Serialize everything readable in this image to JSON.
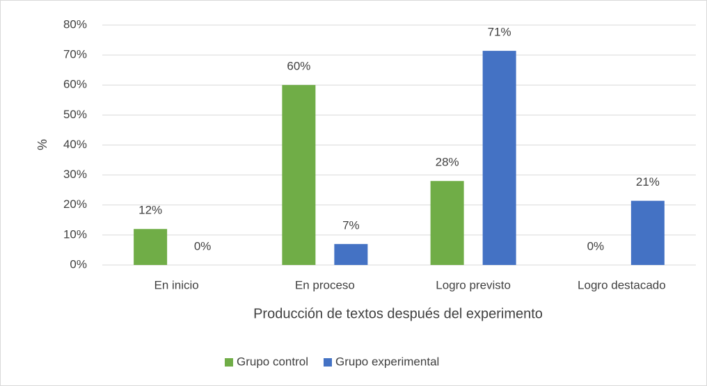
{
  "chart_data": {
    "type": "bar",
    "x_label": "Producción de textos después del experimento",
    "y_label": "%",
    "categories": [
      "En inicio",
      "En proceso",
      "Logro previsto",
      "Logro destacado"
    ],
    "series": [
      {
        "name": "Grupo control",
        "color": "#70ad47",
        "values": [
          12,
          60,
          28,
          0
        ],
        "value_labels": [
          "12%",
          "60%",
          "28%",
          "0%"
        ]
      },
      {
        "name": "Grupo experimental",
        "color": "#4472c4",
        "values": [
          0,
          7,
          71.4,
          21.4
        ],
        "value_labels": [
          "0%",
          "7%",
          "71%",
          "21%"
        ]
      }
    ],
    "ylim": [
      0,
      80
    ],
    "yticks": [
      {
        "value": 0,
        "label": "0%"
      },
      {
        "value": 10,
        "label": "10%"
      },
      {
        "value": 20,
        "label": "20%"
      },
      {
        "value": 30,
        "label": "30%"
      },
      {
        "value": 40,
        "label": "40%"
      },
      {
        "value": 50,
        "label": "50%"
      },
      {
        "value": 60,
        "label": "60%"
      },
      {
        "value": 70,
        "label": "70%"
      },
      {
        "value": 80,
        "label": "80%"
      }
    ],
    "grid": true,
    "legend": "bottom"
  }
}
